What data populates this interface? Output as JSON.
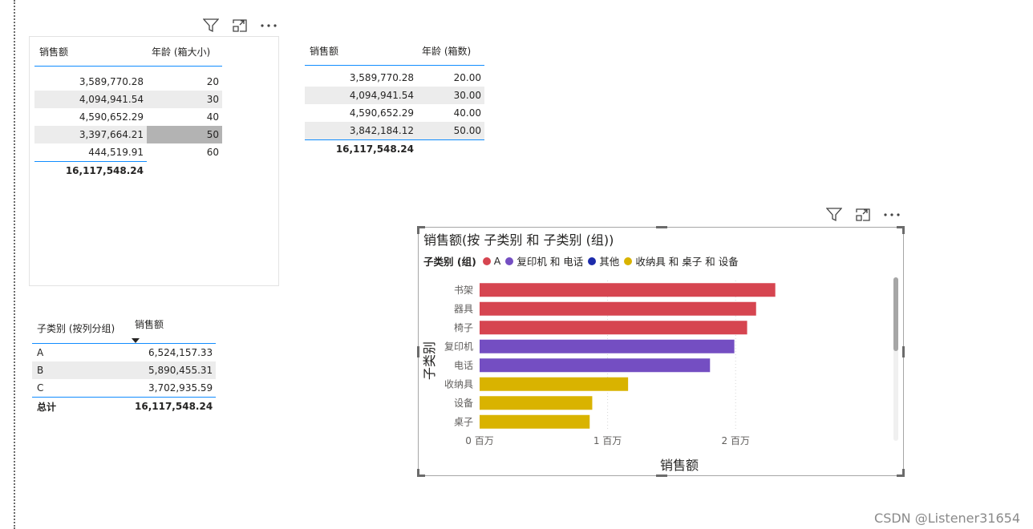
{
  "table1": {
    "headers": [
      "销售额",
      "年龄 (箱大小)"
    ],
    "rows": [
      [
        "3,589,770.28",
        "20"
      ],
      [
        "4,094,941.54",
        "30"
      ],
      [
        "4,590,652.29",
        "40"
      ],
      [
        "3,397,664.21",
        "50"
      ],
      [
        "444,519.91",
        "60"
      ]
    ],
    "total": "16,117,548.24"
  },
  "table2": {
    "headers": [
      "销售额",
      "年龄 (箱数)"
    ],
    "rows": [
      [
        "3,589,770.28",
        "20.00"
      ],
      [
        "4,094,941.54",
        "30.00"
      ],
      [
        "4,590,652.29",
        "40.00"
      ],
      [
        "3,842,184.12",
        "50.00"
      ]
    ],
    "total": "16,117,548.24"
  },
  "table3": {
    "headers": [
      "子类别 (按列分组)",
      "销售额"
    ],
    "rows": [
      [
        "A",
        "6,524,157.33"
      ],
      [
        "B",
        "5,890,455.31"
      ],
      [
        "C",
        "3,702,935.59"
      ]
    ],
    "total_label": "总计",
    "total": "16,117,548.24"
  },
  "icons": {
    "filter": "filter-icon",
    "focus": "focus-mode-icon",
    "more": "more-options-icon",
    "sort": "sort-descending-icon"
  },
  "chart_data": {
    "type": "bar",
    "orientation": "horizontal",
    "title": "销售额(按 子类别 和 子类别 (组))",
    "legend_title": "子类别 (组)",
    "legend": [
      {
        "name": "A",
        "color": "#d64550"
      },
      {
        "name": "复印机 和 电话",
        "color": "#744ec2"
      },
      {
        "name": "其他",
        "color": "#1c2bab"
      },
      {
        "name": "收纳具 和 桌子 和 设备",
        "color": "#d9b300"
      }
    ],
    "categories": [
      "书架",
      "器具",
      "椅子",
      "复印机",
      "电话",
      "收纳具",
      "设备",
      "桌子"
    ],
    "values": [
      2310000,
      2160000,
      2090000,
      1990000,
      1800000,
      1160000,
      880000,
      860000
    ],
    "groups": [
      "A",
      "A",
      "A",
      "复印机 和 电话",
      "复印机 和 电话",
      "收纳具 和 桌子 和 设备",
      "收纳具 和 桌子 和 设备",
      "收纳具 和 桌子 和 设备"
    ],
    "xlabel": "销售额",
    "ylabel": "子类别",
    "xlim": [
      0,
      2500000
    ],
    "xticks": [
      0,
      1000000,
      2000000
    ],
    "xtick_labels": [
      "0 百万",
      "1 百万",
      "2 百万"
    ],
    "grid": true,
    "legend_position": "top-left"
  },
  "watermark": "CSDN @Listener31654"
}
